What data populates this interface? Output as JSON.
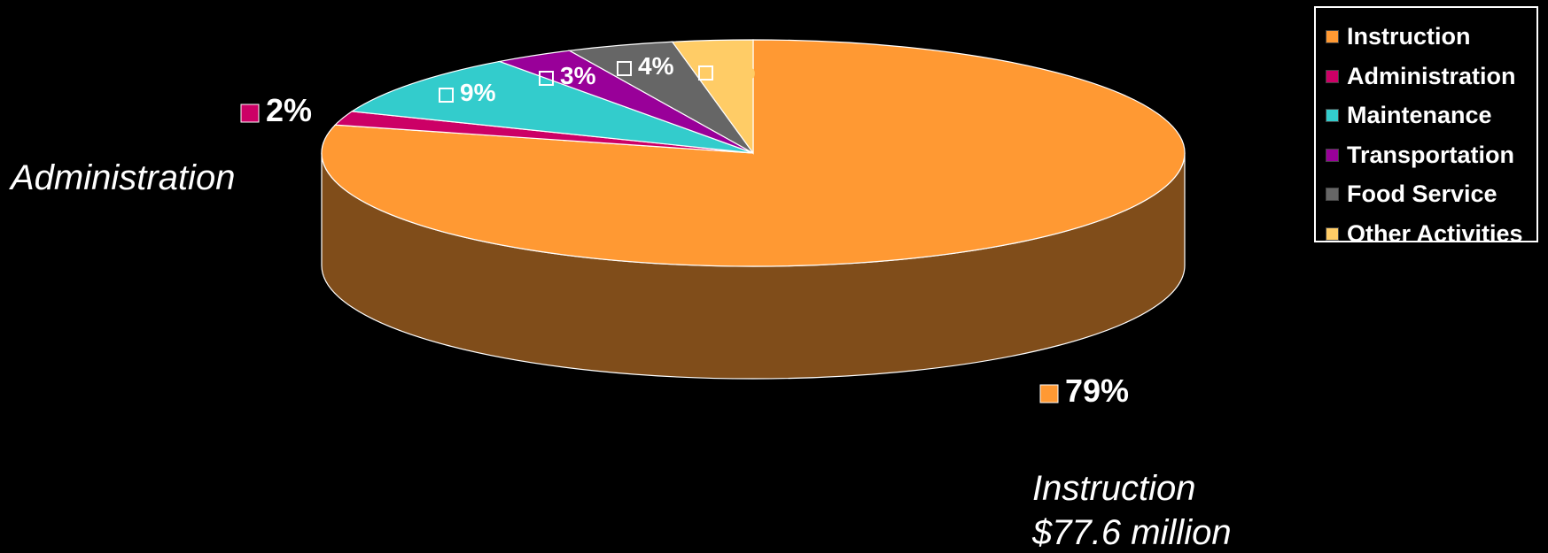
{
  "chart_data": {
    "type": "pie",
    "style": "3d-exploded-view",
    "slices": [
      {
        "name": "Instruction",
        "value": 79,
        "label": "79%",
        "color": "#FF9933"
      },
      {
        "name": "Administration",
        "value": 2,
        "label": "2%",
        "color": "#CC0066"
      },
      {
        "name": "Maintenance",
        "value": 9,
        "label": "9%",
        "color": "#33CCCC"
      },
      {
        "name": "Transportation",
        "value": 3,
        "label": "3%",
        "color": "#990099"
      },
      {
        "name": "Food Service",
        "value": 4,
        "label": "4%",
        "color": "#666666"
      },
      {
        "name": "Other Activities",
        "value": 3,
        "label": "3%",
        "color": "#FFCC66"
      }
    ],
    "legend_position": "top-right",
    "annotations": {
      "administration": "Administration",
      "instruction_line1": "Instruction",
      "instruction_line2": "$77.6 million"
    }
  }
}
